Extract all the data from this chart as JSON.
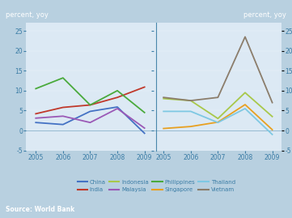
{
  "years": [
    2005,
    2006,
    2007,
    2008,
    2009
  ],
  "left_panel": {
    "China": [
      2.0,
      1.5,
      4.8,
      5.9,
      -0.7
    ],
    "India": [
      4.2,
      5.8,
      6.4,
      8.3,
      10.9
    ],
    "Philippines": [
      10.5,
      13.2,
      6.4,
      10.0,
      4.5
    ],
    "Malaysia": [
      3.1,
      3.6,
      2.0,
      5.5,
      0.6
    ]
  },
  "right_panel": {
    "Indonesia": [
      8.0,
      7.5,
      3.0,
      9.5,
      3.5
    ],
    "Singapore": [
      0.5,
      1.0,
      2.1,
      6.5,
      0.2
    ],
    "Thailand": [
      4.8,
      4.8,
      2.0,
      5.5,
      -1.0
    ],
    "Vietnam": [
      8.3,
      7.5,
      8.3,
      23.5,
      7.0
    ]
  },
  "colors": {
    "China": "#4472c4",
    "India": "#c0392b",
    "Philippines": "#4aaa3c",
    "Malaysia": "#9b59b6",
    "Indonesia": "#a8c84a",
    "Singapore": "#e8a020",
    "Thailand": "#7ec8e3",
    "Vietnam": "#8b7d6b"
  },
  "ylim": [
    -5,
    27
  ],
  "yticks": [
    -5,
    0,
    5,
    10,
    15,
    20,
    25
  ],
  "bg_outer": "#b8d0e0",
  "bg_header": "#3a7ca5",
  "bg_panel": "#dce9f4",
  "label_color": "#3a7ca5",
  "tick_color": "#3a7ca5",
  "source_text": "Source: World Bank",
  "ylabel_text": "percent, yoy",
  "legend_order": [
    "China",
    "India",
    "Indonesia",
    "Malaysia",
    "Philippines",
    "Singapore",
    "Thailand",
    "Vietnam"
  ]
}
